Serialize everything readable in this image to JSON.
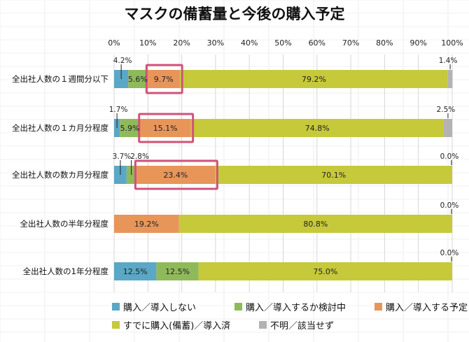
{
  "chart_data": {
    "type": "bar",
    "orientation": "horizontal",
    "stacked": true,
    "percent": true,
    "title": "マスクの備蓄量と今後の購入予定",
    "xlim": [
      0,
      100
    ],
    "xticks": [
      "0%",
      "10%",
      "20%",
      "30%",
      "40%",
      "50%",
      "60%",
      "70%",
      "80%",
      "90%",
      "100%"
    ],
    "tick_values": [
      0,
      10,
      20,
      30,
      40,
      50,
      60,
      70,
      80,
      90,
      100
    ],
    "categories": [
      "全出社人数の１週間分以下",
      "全出社人数の１カ月分程度",
      "全出社人数の数カ月分程度",
      "全出社人数の半年分程度",
      "全出社人数の1年分程度"
    ],
    "series": [
      {
        "name": "購入／導入しない",
        "color": "#5aa7c6",
        "values": [
          4.2,
          1.7,
          3.7,
          0,
          12.5
        ],
        "labels": [
          "4.2%",
          "1.7%",
          "3.7%",
          "",
          "12.5%"
        ],
        "label_inside": [
          false,
          false,
          false,
          false,
          true
        ]
      },
      {
        "name": "購入／導入するか検討中",
        "color": "#8fba5a",
        "values": [
          5.6,
          5.9,
          2.8,
          0,
          12.5
        ],
        "labels": [
          "5.6%",
          "5.9%",
          "2.8%",
          "",
          "12.5%"
        ],
        "label_inside": [
          true,
          true,
          false,
          false,
          true
        ]
      },
      {
        "name": "購入／導入する予定",
        "color": "#e8955a",
        "values": [
          9.7,
          15.1,
          23.4,
          19.2,
          0
        ],
        "labels": [
          "9.7%",
          "15.1%",
          "23.4%",
          "19.2%",
          ""
        ],
        "label_inside": [
          true,
          true,
          true,
          true,
          false
        ]
      },
      {
        "name": "すでに購入(備蓄)／導入済",
        "color": "#c6c93a",
        "values": [
          79.2,
          74.8,
          70.1,
          80.8,
          75.0
        ],
        "labels": [
          "79.2%",
          "74.8%",
          "70.1%",
          "80.8%",
          "75.0%"
        ],
        "label_inside": [
          true,
          true,
          true,
          true,
          true
        ]
      },
      {
        "name": "不明／該当せず",
        "color": "#b3b3b3",
        "values": [
          1.4,
          2.5,
          0.0,
          0.0,
          0.0
        ],
        "labels": [
          "1.4%",
          "2.5%",
          "0.0%",
          "0.0%",
          "0.0%"
        ],
        "label_inside": [
          false,
          false,
          false,
          false,
          false
        ]
      }
    ],
    "highlights": [
      {
        "row": 0,
        "series": 2
      },
      {
        "row": 1,
        "series": 2
      },
      {
        "row": 2,
        "series": 2
      }
    ],
    "highlight_color": "#d2527a",
    "legend_position": "bottom",
    "grid": true
  }
}
